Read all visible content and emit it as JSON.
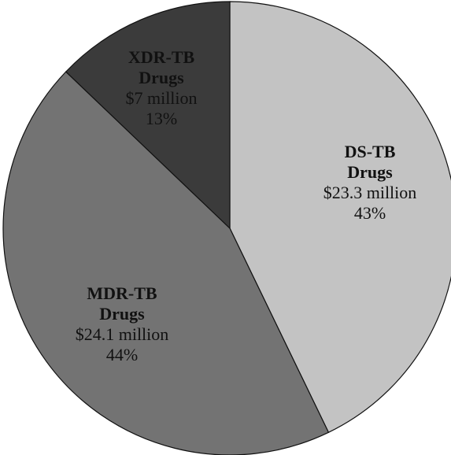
{
  "chart_data": {
    "type": "pie",
    "categories": [
      "DS-TB Drugs",
      "MDR-TB Drugs",
      "XDR-TB Drugs"
    ],
    "values": [
      23.3,
      24.1,
      7
    ],
    "value_labels": [
      "$23.3 million",
      "$24.1 million",
      "$7 million"
    ],
    "percents": [
      43,
      44,
      13
    ],
    "percent_labels": [
      "43%",
      "44%",
      "13%"
    ],
    "colors": [
      "#c3c3c3",
      "#737373",
      "#3b3b3b"
    ]
  }
}
